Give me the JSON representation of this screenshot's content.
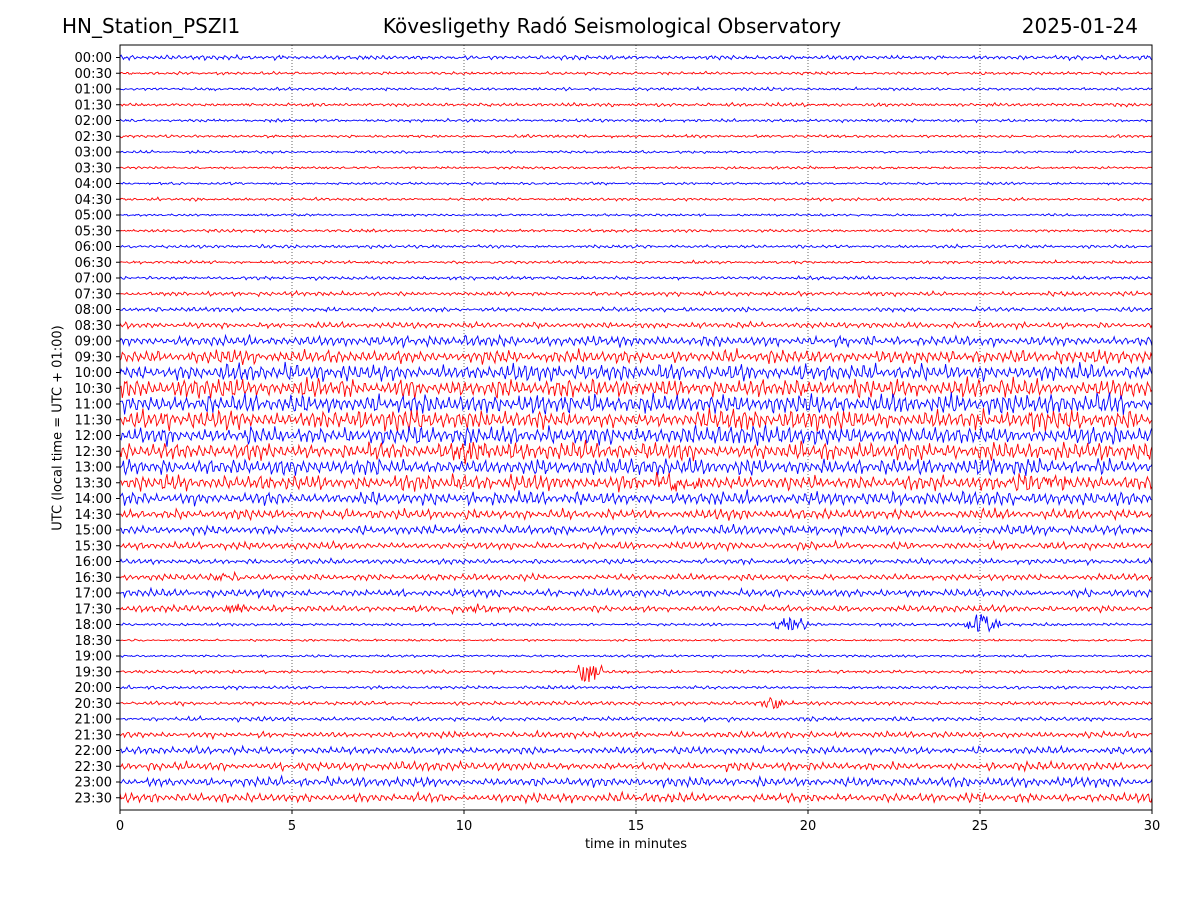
{
  "header": {
    "station": "HN_Station_PSZI1",
    "title": "Kövesligethy Radó Seismological Observatory",
    "date": "2025-01-24"
  },
  "chart_data": {
    "type": "line",
    "subtype": "helicorder",
    "xlabel": "time in minutes",
    "ylabel": "UTC (local time = UTC + 01:00)",
    "xlim": [
      0,
      30
    ],
    "xticks": [
      0,
      5,
      10,
      15,
      20,
      25,
      30
    ],
    "grid": "vertical dotted at each x tick",
    "row_labels": [
      "00:00",
      "00:30",
      "01:00",
      "01:30",
      "02:00",
      "02:30",
      "03:00",
      "03:30",
      "04:00",
      "04:30",
      "05:00",
      "05:30",
      "06:00",
      "06:30",
      "07:00",
      "07:30",
      "08:00",
      "08:30",
      "09:00",
      "09:30",
      "10:00",
      "10:30",
      "11:00",
      "11:30",
      "12:00",
      "12:30",
      "13:00",
      "13:30",
      "14:00",
      "14:30",
      "15:00",
      "15:30",
      "16:00",
      "16:30",
      "17:00",
      "17:30",
      "18:00",
      "18:30",
      "19:00",
      "19:30",
      "20:00",
      "20:30",
      "21:00",
      "21:30",
      "22:00",
      "22:30",
      "23:00",
      "23:30"
    ],
    "row_colors": [
      "#0000ff",
      "#ff0000"
    ],
    "row_amplitude_levels": [
      0.8,
      0.5,
      0.5,
      0.6,
      0.5,
      0.5,
      0.4,
      0.4,
      0.4,
      0.5,
      0.4,
      0.5,
      0.6,
      0.5,
      0.6,
      0.8,
      0.8,
      1.2,
      2.0,
      2.6,
      3.2,
      3.6,
      3.8,
      3.8,
      3.6,
      3.4,
      3.2,
      3.0,
      2.6,
      2.0,
      1.8,
      1.4,
      1.0,
      1.2,
      1.4,
      1.2,
      0.5,
      0.3,
      0.4,
      0.6,
      0.6,
      0.7,
      0.8,
      1.2,
      1.4,
      1.6,
      1.8,
      1.8
    ],
    "bursts": [
      {
        "row": "12:30",
        "from": 9.5,
        "to": 11.0,
        "strength": 1.0
      },
      {
        "row": "13:30",
        "from": 15.2,
        "to": 17.2,
        "strength": 1.4
      },
      {
        "row": "13:30",
        "from": 25.5,
        "to": 28.5,
        "strength": 1.0
      },
      {
        "row": "16:30",
        "from": 2.5,
        "to": 3.6,
        "strength": 0.8
      },
      {
        "row": "17:30",
        "from": 3.0,
        "to": 3.8,
        "strength": 1.0
      },
      {
        "row": "17:30",
        "from": 9.5,
        "to": 11.2,
        "strength": 0.8
      },
      {
        "row": "18:00",
        "from": 19.0,
        "to": 20.0,
        "strength": 2.2
      },
      {
        "row": "18:00",
        "from": 24.5,
        "to": 25.6,
        "strength": 2.4
      },
      {
        "row": "19:30",
        "from": 13.3,
        "to": 14.0,
        "strength": 3.0
      },
      {
        "row": "20:30",
        "from": 18.6,
        "to": 19.4,
        "strength": 1.8
      }
    ]
  }
}
